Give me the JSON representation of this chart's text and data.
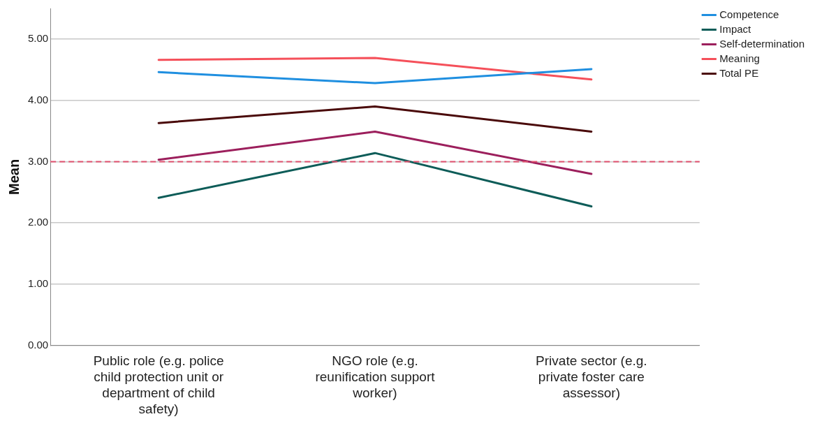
{
  "chart_data": {
    "type": "line",
    "ylabel": "Mean",
    "categories": [
      "Public role (e.g. police child protection unit or department of child safety)",
      "NGO role (e.g. reunification support worker)",
      "Private sector (e.g. private foster care assessor)"
    ],
    "series": [
      {
        "name": "Competence",
        "color": "#1f8fe0",
        "values": [
          4.46,
          4.28,
          4.51
        ]
      },
      {
        "name": "Impact",
        "color": "#0d5c58",
        "values": [
          2.41,
          3.14,
          2.27
        ]
      },
      {
        "name": "Self-determination",
        "color": "#9c1f5c",
        "values": [
          3.03,
          3.49,
          2.8
        ]
      },
      {
        "name": "Meaning",
        "color": "#f5505a",
        "values": [
          4.66,
          4.69,
          4.34
        ]
      },
      {
        "name": "Total PE",
        "color": "#4a0a0a",
        "values": [
          3.63,
          3.9,
          3.49
        ]
      }
    ],
    "ylim": [
      0,
      5.5
    ],
    "yticks": [
      {
        "value": 0,
        "label": "0.00"
      },
      {
        "value": 1,
        "label": "1.00"
      },
      {
        "value": 2,
        "label": "2.00"
      },
      {
        "value": 3,
        "label": "3.00"
      },
      {
        "value": 4,
        "label": "4.00"
      },
      {
        "value": 5,
        "label": "5.00"
      }
    ],
    "grid": "y",
    "legend": "top right",
    "marker": "none",
    "line_style": "solid",
    "ref_lines": [
      {
        "axis": "y",
        "value": 3,
        "color": "#e0506e",
        "line_style": "dashed"
      }
    ]
  }
}
